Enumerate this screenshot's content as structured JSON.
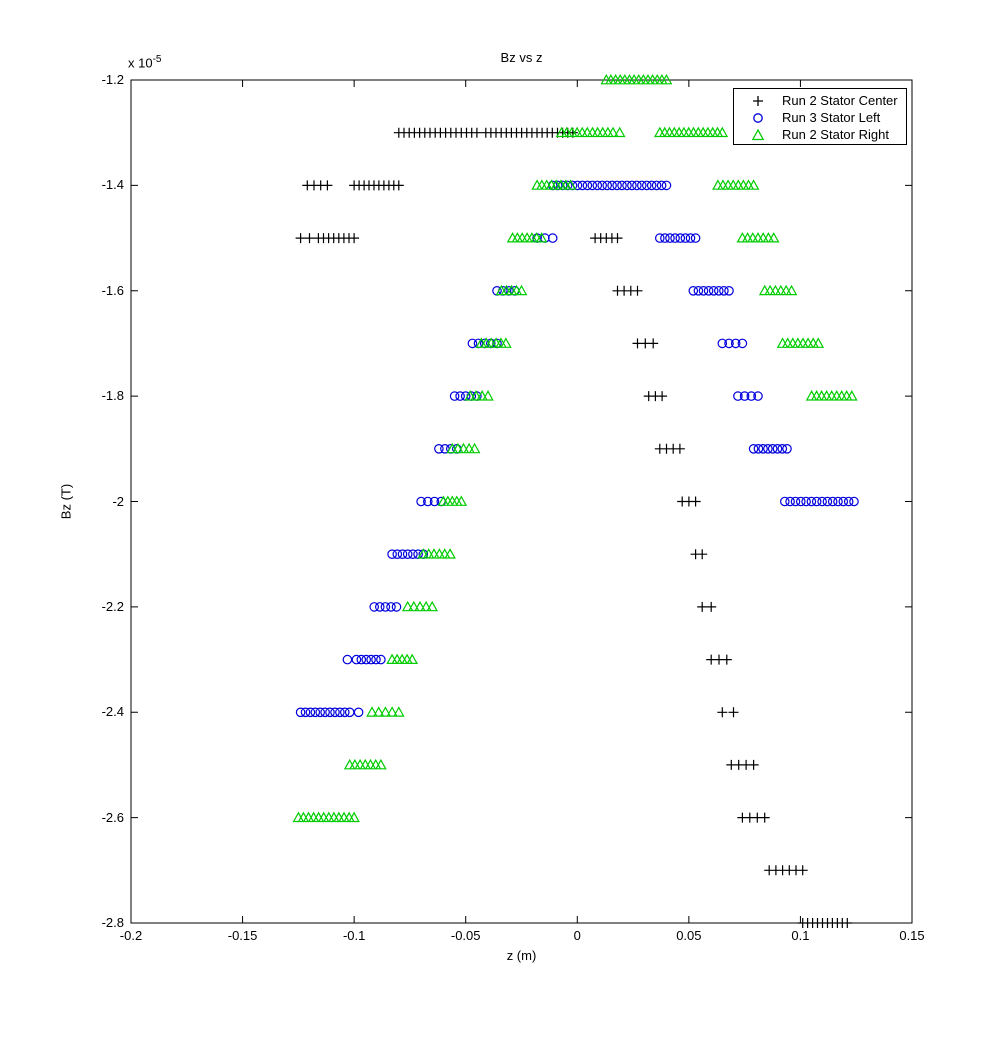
{
  "figure": {
    "title": "Bz vs z",
    "xlabel": "z (m)",
    "ylabel": "Bz (T)",
    "exponent_label": "x 10",
    "exponent_power": "-5"
  },
  "legend": {
    "items": [
      {
        "label": "Run 2 Stator Center",
        "marker": "plus",
        "color": "#000000"
      },
      {
        "label": "Run 3 Stator Left",
        "marker": "circle",
        "color": "#0000dd"
      },
      {
        "label": "Run 2 Stator Right",
        "marker": "triangle",
        "color": "#00cc00"
      }
    ]
  },
  "chart_data": {
    "type": "scatter",
    "title": "Bz vs z",
    "xlabel": "z (m)",
    "ylabel": "Bz (T)",
    "y_unit_multiplier": "1e-5",
    "xlim": [
      -0.2,
      0.15
    ],
    "ylim_scaled": [
      -2.8,
      -1.2
    ],
    "xtick_values": [
      -0.2,
      -0.15,
      -0.1,
      -0.05,
      0,
      0.05,
      0.1,
      0.15
    ],
    "xtick_labels": [
      "-0.2",
      "-0.15",
      "-0.1",
      "-0.05",
      "0",
      "0.05",
      "0.1",
      "0.15"
    ],
    "ytick_values": [
      -1.2,
      -1.4,
      -1.6,
      -1.8,
      -2,
      -2.2,
      -2.4,
      -2.6,
      -2.8
    ],
    "ytick_labels": [
      "-1.2",
      "-1.4",
      "-1.6",
      "-1.8",
      "-2",
      "-2.2",
      "-2.4",
      "-2.6",
      "-2.8"
    ],
    "grid": false,
    "legend_position": "top-right-inside",
    "cluster_format": "[Bz_in_1e-5_T, z_start_m, z_end_m, num_points]",
    "series": [
      {
        "name": "Run 2 Stator Center",
        "marker": "plus",
        "color": "#000000",
        "clusters": [
          [
            -1.3,
            -0.08,
            -0.045,
            16
          ],
          [
            -1.3,
            -0.041,
            -0.002,
            18
          ],
          [
            -1.4,
            -0.121,
            -0.115,
            3
          ],
          [
            -1.4,
            -0.112,
            -0.112,
            1
          ],
          [
            -1.4,
            -0.1,
            -0.08,
            10
          ],
          [
            -1.5,
            -0.124,
            -0.12,
            2
          ],
          [
            -1.5,
            -0.116,
            -0.1,
            8
          ],
          [
            -1.5,
            0.008,
            0.018,
            5
          ],
          [
            -1.6,
            0.018,
            0.027,
            4
          ],
          [
            -1.7,
            0.027,
            0.034,
            3
          ],
          [
            -1.8,
            0.032,
            0.038,
            3
          ],
          [
            -1.9,
            0.037,
            0.046,
            4
          ],
          [
            -2.0,
            0.047,
            0.053,
            3
          ],
          [
            -2.1,
            0.053,
            0.056,
            2
          ],
          [
            -2.2,
            0.056,
            0.06,
            2
          ],
          [
            -2.3,
            0.06,
            0.067,
            3
          ],
          [
            -2.4,
            0.065,
            0.07,
            2
          ],
          [
            -2.5,
            0.069,
            0.079,
            4
          ],
          [
            -2.6,
            0.074,
            0.084,
            4
          ],
          [
            -2.7,
            0.086,
            0.101,
            6
          ],
          [
            -2.8,
            0.101,
            0.121,
            10
          ]
        ]
      },
      {
        "name": "Run 3 Stator Left",
        "marker": "circle",
        "color": "#0000dd",
        "clusters": [
          [
            -1.4,
            -0.011,
            0.04,
            24
          ],
          [
            -1.5,
            -0.018,
            -0.011,
            3
          ],
          [
            -1.5,
            0.037,
            0.053,
            8
          ],
          [
            -1.6,
            -0.036,
            -0.028,
            4
          ],
          [
            -1.6,
            0.052,
            0.068,
            8
          ],
          [
            -1.7,
            -0.047,
            -0.036,
            5
          ],
          [
            -1.7,
            0.065,
            0.074,
            4
          ],
          [
            -1.8,
            -0.055,
            -0.045,
            5
          ],
          [
            -1.8,
            0.072,
            0.081,
            4
          ],
          [
            -1.9,
            -0.062,
            -0.054,
            4
          ],
          [
            -1.9,
            0.079,
            0.094,
            8
          ],
          [
            -2.0,
            -0.07,
            -0.061,
            4
          ],
          [
            -2.0,
            0.093,
            0.124,
            14
          ],
          [
            -2.1,
            -0.083,
            -0.069,
            7
          ],
          [
            -2.2,
            -0.091,
            -0.081,
            5
          ],
          [
            -2.3,
            -0.103,
            -0.103,
            1
          ],
          [
            -2.3,
            -0.099,
            -0.088,
            6
          ],
          [
            -2.4,
            -0.124,
            -0.102,
            11
          ],
          [
            -2.4,
            -0.098,
            -0.098,
            1
          ]
        ]
      },
      {
        "name": "Run 2 Stator Right",
        "marker": "triangle",
        "color": "#00cc00",
        "clusters": [
          [
            -1.2,
            0.013,
            0.04,
            14
          ],
          [
            -1.3,
            -0.007,
            0.016,
            11
          ],
          [
            -1.3,
            0.019,
            0.019,
            1
          ],
          [
            -1.3,
            0.037,
            0.065,
            14
          ],
          [
            -1.4,
            -0.018,
            -0.003,
            8
          ],
          [
            -1.4,
            0.063,
            0.079,
            8
          ],
          [
            -1.5,
            -0.029,
            -0.016,
            7
          ],
          [
            -1.5,
            0.074,
            0.088,
            7
          ],
          [
            -1.6,
            -0.034,
            -0.025,
            5
          ],
          [
            -1.6,
            0.084,
            0.096,
            6
          ],
          [
            -1.7,
            -0.043,
            -0.032,
            6
          ],
          [
            -1.7,
            0.092,
            0.108,
            8
          ],
          [
            -1.8,
            -0.048,
            -0.04,
            4
          ],
          [
            -1.8,
            0.105,
            0.123,
            9
          ],
          [
            -1.9,
            -0.056,
            -0.046,
            5
          ],
          [
            -2.0,
            -0.06,
            -0.052,
            5
          ],
          [
            -2.1,
            -0.069,
            -0.057,
            6
          ],
          [
            -2.2,
            -0.076,
            -0.065,
            5
          ],
          [
            -2.3,
            -0.083,
            -0.074,
            5
          ],
          [
            -2.4,
            -0.092,
            -0.08,
            5
          ],
          [
            -2.5,
            -0.102,
            -0.088,
            7
          ],
          [
            -2.6,
            -0.125,
            -0.1,
            12
          ]
        ]
      }
    ]
  }
}
